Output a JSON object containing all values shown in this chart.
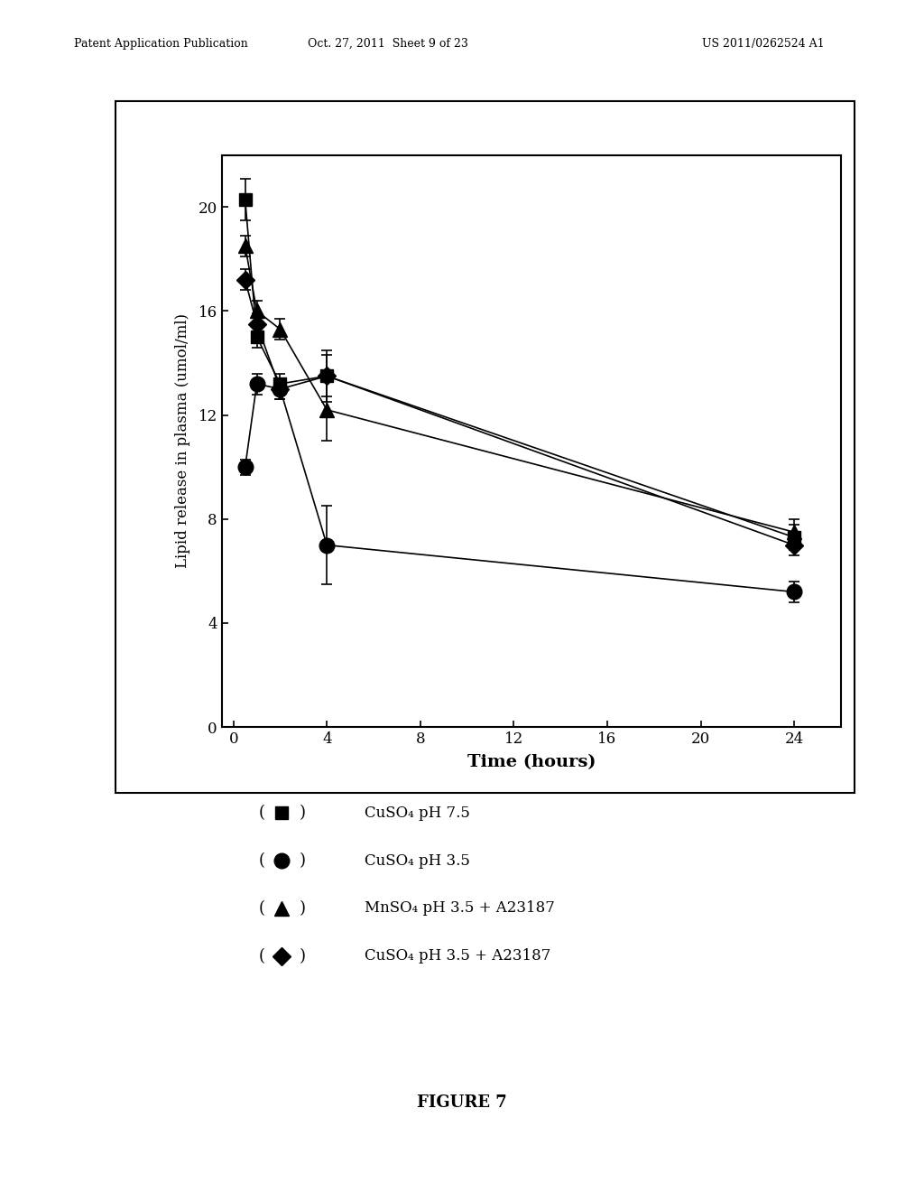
{
  "title": "",
  "xlabel": "Time (hours)",
  "ylabel": "Lipid release in plasma (umol/ml)",
  "xlim": [
    -0.5,
    26
  ],
  "ylim": [
    0,
    22
  ],
  "xticks": [
    0,
    4,
    8,
    12,
    16,
    20,
    24
  ],
  "yticks": [
    0,
    4,
    8,
    12,
    16,
    20
  ],
  "series": [
    {
      "label": "CuSO4 pH 7.5",
      "marker": "s",
      "x": [
        0.5,
        1,
        2,
        4,
        24
      ],
      "y": [
        20.3,
        15.0,
        13.2,
        13.5,
        7.3
      ],
      "yerr": [
        0.8,
        0.4,
        0.4,
        1.0,
        0.5
      ]
    },
    {
      "label": "CuSO4 pH 3.5",
      "marker": "o",
      "x": [
        0.5,
        1,
        2,
        4,
        24
      ],
      "y": [
        10.0,
        13.2,
        13.0,
        7.0,
        5.2
      ],
      "yerr": [
        0.3,
        0.4,
        0.4,
        1.5,
        0.4
      ]
    },
    {
      "label": "MnSO4 pH 3.5 + A23187",
      "marker": "^",
      "x": [
        0.5,
        1,
        2,
        4,
        24
      ],
      "y": [
        18.5,
        16.0,
        15.3,
        12.2,
        7.5
      ],
      "yerr": [
        0.4,
        0.4,
        0.4,
        1.2,
        0.5
      ]
    },
    {
      "label": "CuSO4 pH 3.5 + A23187",
      "marker": "D",
      "x": [
        0.5,
        1,
        2,
        4,
        24
      ],
      "y": [
        17.2,
        15.5,
        13.0,
        13.5,
        7.0
      ],
      "yerr": [
        0.4,
        0.4,
        0.4,
        0.8,
        0.4
      ]
    }
  ],
  "legend_labels": [
    "CuSO₄ pH 7.5",
    "CuSO₄ pH 3.5",
    "MnSO₄ pH 3.5 + A23187",
    "CuSO₄ pH 3.5 + A23187"
  ],
  "legend_markers": [
    "s",
    "o",
    "^",
    "D"
  ],
  "figure_caption": "FIGURE 7",
  "header_left": "Patent Application Publication",
  "header_mid": "Oct. 27, 2011  Sheet 9 of 23",
  "header_right": "US 2011/0262524 A1",
  "color": "#000000",
  "bg_color": "#ffffff"
}
